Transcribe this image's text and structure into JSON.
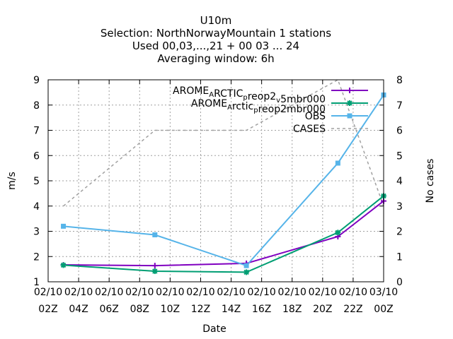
{
  "chart_data": {
    "type": "line",
    "title_lines": [
      "U10m",
      "Selection: NorthNorwayMountain      1 stations",
      "Used  00,03,...,21  + 00 03 ... 24",
      "Averaging window:  6h"
    ],
    "xlabel": "Date",
    "ylabel": "m/s",
    "y2label": "No cases",
    "x_ticks": [
      {
        "t": 2,
        "line1": "02/10",
        "line2": "02Z"
      },
      {
        "t": 4,
        "line1": "02/10",
        "line2": "04Z"
      },
      {
        "t": 6,
        "line1": "02/10",
        "line2": "06Z"
      },
      {
        "t": 8,
        "line1": "02/10",
        "line2": "08Z"
      },
      {
        "t": 10,
        "line1": "02/10",
        "line2": "10Z"
      },
      {
        "t": 12,
        "line1": "02/10",
        "line2": "12Z"
      },
      {
        "t": 14,
        "line1": "02/10",
        "line2": "14Z"
      },
      {
        "t": 16,
        "line1": "02/10",
        "line2": "16Z"
      },
      {
        "t": 18,
        "line1": "02/10",
        "line2": "18Z"
      },
      {
        "t": 20,
        "line1": "02/10",
        "line2": "20Z"
      },
      {
        "t": 22,
        "line1": "02/10",
        "line2": "22Z"
      },
      {
        "t": 24,
        "line1": "03/10",
        "line2": "00Z"
      }
    ],
    "xlim": [
      2,
      24
    ],
    "ylim": [
      1,
      9
    ],
    "y2lim": [
      0,
      8
    ],
    "y_ticks": [
      1,
      2,
      3,
      4,
      5,
      6,
      7,
      8,
      9
    ],
    "y2_ticks": [
      0,
      1,
      2,
      3,
      4,
      5,
      6,
      7,
      8
    ],
    "grid": true,
    "legend_position": "top-right",
    "series": [
      {
        "name": "AROME_ARCTIC_preop2_v5mbr000",
        "legend_parts": [
          [
            "AROME",
            ""
          ],
          [
            "A",
            "sub"
          ],
          [
            "RCTIC",
            ""
          ],
          [
            "p",
            "sub"
          ],
          [
            "reop2",
            ""
          ],
          [
            "v",
            "sub"
          ],
          [
            "5mbr000",
            ""
          ]
        ],
        "color": "#8000c0",
        "marker": "plus",
        "axis": "y1",
        "x": [
          3,
          9,
          15,
          21,
          24
        ],
        "y": [
          1.67,
          1.64,
          1.73,
          2.79,
          4.2
        ]
      },
      {
        "name": "AROME_Arctic_preop2mbr000",
        "legend_parts": [
          [
            "AROME",
            ""
          ],
          [
            "A",
            "sub"
          ],
          [
            "rctic",
            ""
          ],
          [
            "p",
            "sub"
          ],
          [
            "reop2mbr000",
            ""
          ]
        ],
        "color": "#009e73",
        "marker": "star",
        "axis": "y1",
        "x": [
          3,
          9,
          15,
          21,
          24
        ],
        "y": [
          1.66,
          1.42,
          1.38,
          2.95,
          4.4
        ]
      },
      {
        "name": "OBS",
        "legend_parts": [
          [
            "OBS",
            ""
          ]
        ],
        "color": "#56b4e9",
        "marker": "box",
        "axis": "y1",
        "x": [
          3,
          9,
          15,
          21,
          24
        ],
        "y": [
          3.2,
          2.86,
          1.64,
          5.7,
          8.4
        ]
      },
      {
        "name": "CASES",
        "legend_parts": [
          [
            "CASES",
            ""
          ]
        ],
        "color": "#a0a0a0",
        "marker": "none",
        "dashed": true,
        "axis": "y2",
        "x": [
          3,
          9,
          15,
          21,
          24
        ],
        "y": [
          3,
          6,
          6,
          8,
          3
        ]
      }
    ]
  }
}
